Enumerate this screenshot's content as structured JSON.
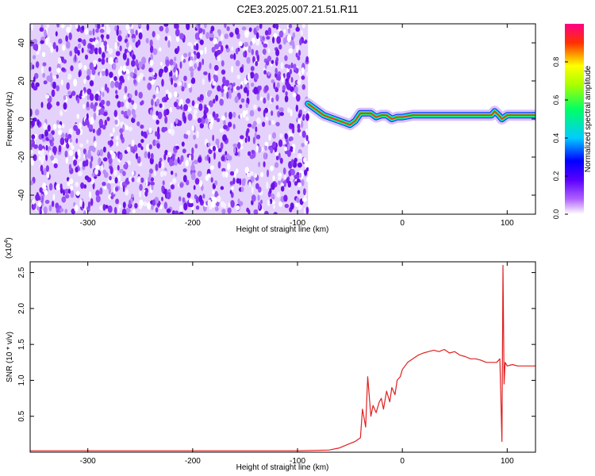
{
  "figure": {
    "title": "C2E3.2025.007.21.51.R11"
  },
  "chart_data": [
    {
      "type": "heatmap",
      "xlabel": "Height of straight line (km)",
      "ylabel": "Frequency (Hz)",
      "xlim": [
        -355,
        127
      ],
      "ylim": [
        -50,
        50
      ],
      "x_ticks": [
        -300,
        -200,
        -100,
        0,
        100
      ],
      "y_ticks": [
        -40,
        -20,
        0,
        20,
        40
      ],
      "colorbar": {
        "label": "Normalized spectral amplitude",
        "range": [
          0,
          1
        ],
        "ticks": [
          0.0,
          0.2,
          0.4,
          0.6,
          0.8
        ],
        "colormap": [
          "#ffffff",
          "#8800ff",
          "#0000ff",
          "#00ffff",
          "#00ff00",
          "#ffff00",
          "#ff0000",
          "#ff00aa"
        ]
      },
      "noise_region": {
        "x_range": [
          -355,
          -90
        ],
        "y_range": [
          -50,
          50
        ]
      },
      "signal_trace": {
        "x": [
          -90,
          -85,
          -80,
          -75,
          -70,
          -65,
          -60,
          -55,
          -50,
          -45,
          -40,
          -35,
          -30,
          -25,
          -20,
          -15,
          -10,
          -5,
          0,
          10,
          20,
          30,
          40,
          50,
          60,
          70,
          80,
          85,
          88,
          90,
          92,
          95,
          100,
          110,
          127
        ],
        "y": [
          8,
          6,
          4,
          2,
          1,
          0,
          -1,
          -2,
          -3,
          -1,
          3,
          3,
          3,
          1,
          2,
          2,
          0,
          1,
          1,
          2,
          2,
          2,
          2,
          2,
          2,
          2,
          2,
          2,
          4,
          3,
          2,
          0,
          2,
          2,
          2
        ]
      }
    },
    {
      "type": "line",
      "xlabel": "Height of straight line (km)",
      "ylabel": "SNR (10 * v/v)",
      "y_scale_label": "(x10",
      "y_scale_exp": "4",
      "xlim": [
        -355,
        127
      ],
      "ylim": [
        0,
        2.65
      ],
      "x_ticks": [
        -300,
        -200,
        -100,
        0,
        100
      ],
      "y_ticks": [
        0.5,
        1.0,
        1.5,
        2.0,
        2.5
      ],
      "y_tick_labels": [
        "0.5",
        "1.0",
        "1.5",
        "2.0",
        "2.5"
      ],
      "series": [
        {
          "color": "#e02020",
          "x": [
            -355,
            -100,
            -70,
            -60,
            -50,
            -45,
            -40,
            -38,
            -35,
            -33,
            -30,
            -28,
            -25,
            -22,
            -20,
            -18,
            -15,
            -12,
            -10,
            -7,
            -5,
            -2,
            0,
            5,
            10,
            15,
            20,
            25,
            30,
            35,
            40,
            45,
            50,
            55,
            60,
            65,
            70,
            75,
            80,
            85,
            90,
            93,
            95,
            96,
            97,
            98,
            100,
            105,
            110,
            115,
            120,
            127
          ],
          "y": [
            0.02,
            0.02,
            0.03,
            0.06,
            0.12,
            0.15,
            0.2,
            0.6,
            0.35,
            1.05,
            0.5,
            0.65,
            0.55,
            0.7,
            0.75,
            0.6,
            0.85,
            0.7,
            0.9,
            0.8,
            1.0,
            1.05,
            1.15,
            1.25,
            1.3,
            1.35,
            1.38,
            1.4,
            1.42,
            1.4,
            1.43,
            1.38,
            1.4,
            1.35,
            1.33,
            1.3,
            1.3,
            1.28,
            1.25,
            1.25,
            1.25,
            1.3,
            0.15,
            2.6,
            0.95,
            1.25,
            1.2,
            1.22,
            1.2,
            1.2,
            1.2,
            1.2
          ]
        }
      ]
    }
  ]
}
